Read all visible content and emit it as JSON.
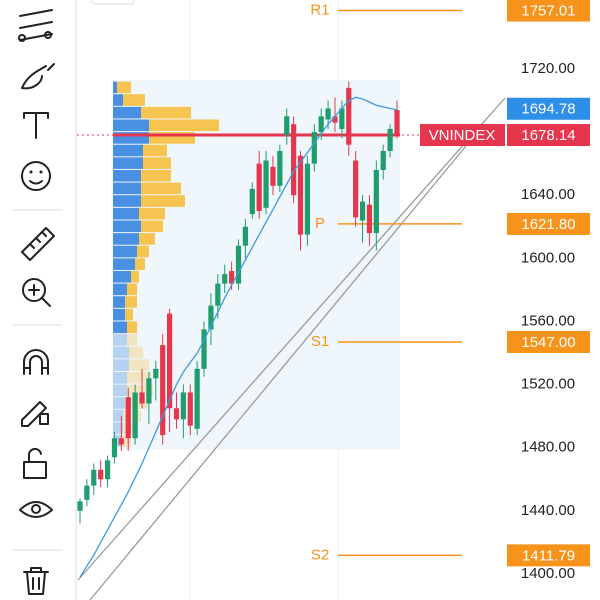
{
  "chart_data": {
    "type": "candlestick",
    "symbol": "VNINDEX",
    "ylim": [
      1383.5,
      1763.7
    ],
    "yticks": [
      {
        "value": 1720,
        "label": "1720.00"
      },
      {
        "value": 1640,
        "label": "1640.00"
      },
      {
        "value": 1600,
        "label": "1600.00"
      },
      {
        "value": 1560,
        "label": "1560.00"
      },
      {
        "value": 1520,
        "label": "1520.00"
      },
      {
        "value": 1480,
        "label": "1480.00"
      },
      {
        "value": 1440,
        "label": "1440.00"
      },
      {
        "value": 1400,
        "label": "1400.00"
      }
    ],
    "up_color": "#1f9d6c",
    "down_color": "#e6364d",
    "open": [
      1440,
      1447,
      1456,
      1466,
      1460,
      1474,
      1486,
      1512,
      1486,
      1515,
      1508,
      1524,
      1545,
      1565,
      1505,
      1498,
      1515,
      1492,
      1530,
      1555,
      1570,
      1584,
      1592,
      1584,
      1608,
      1628,
      1660,
      1632,
      1658,
      1646,
      1678,
      1685,
      1665,
      1615,
      1660,
      1680,
      1688,
      1690,
      1682,
      1708,
      1662,
      1624,
      1634,
      1616,
      1656,
      1668,
      1694
    ],
    "high": [
      1448,
      1460,
      1470,
      1472,
      1475,
      1490,
      1500,
      1518,
      1520,
      1530,
      1528,
      1535,
      1552,
      1568,
      1515,
      1520,
      1520,
      1535,
      1560,
      1578,
      1590,
      1596,
      1598,
      1612,
      1625,
      1648,
      1668,
      1668,
      1665,
      1672,
      1695,
      1690,
      1668,
      1665,
      1685,
      1695,
      1700,
      1702,
      1700,
      1712,
      1668,
      1640,
      1640,
      1662,
      1672,
      1685,
      1700
    ],
    "low": [
      1432,
      1443,
      1450,
      1455,
      1455,
      1470,
      1478,
      1478,
      1482,
      1505,
      1495,
      1510,
      1482,
      1490,
      1492,
      1486,
      1488,
      1488,
      1525,
      1545,
      1562,
      1578,
      1580,
      1580,
      1600,
      1625,
      1625,
      1628,
      1640,
      1642,
      1672,
      1635,
      1605,
      1608,
      1655,
      1675,
      1682,
      1680,
      1676,
      1665,
      1620,
      1610,
      1608,
      1605,
      1650,
      1664,
      1676
    ],
    "close": [
      1446,
      1456,
      1466,
      1460,
      1472,
      1486,
      1482,
      1486,
      1515,
      1508,
      1524,
      1530,
      1488,
      1505,
      1498,
      1515,
      1494,
      1530,
      1555,
      1570,
      1584,
      1590,
      1584,
      1608,
      1620,
      1644,
      1630,
      1662,
      1646,
      1668,
      1690,
      1640,
      1615,
      1660,
      1680,
      1690,
      1695,
      1686,
      1695,
      1672,
      1626,
      1636,
      1616,
      1656,
      1668,
      1682,
      1678
    ],
    "ma": {
      "color": "#3d9be0",
      "values": [
        1398,
        1405,
        1412,
        1420,
        1428,
        1436,
        1444,
        1452,
        1461,
        1470,
        1480,
        1490,
        1500,
        1510,
        1520,
        1528,
        1534,
        1540,
        1548,
        1557,
        1566,
        1575,
        1583,
        1591,
        1599,
        1607,
        1615,
        1623,
        1631,
        1639,
        1647,
        1655,
        1661,
        1667,
        1673,
        1679,
        1685,
        1690,
        1695,
        1700,
        1702,
        1701,
        1699,
        1697,
        1696,
        1695,
        1694
      ]
    },
    "volume_profile": {
      "bins": [
        1480,
        1488,
        1496,
        1504,
        1512,
        1520,
        1528,
        1536,
        1544,
        1552,
        1560,
        1568,
        1576,
        1584,
        1592,
        1600,
        1608,
        1616,
        1624,
        1632,
        1640,
        1648,
        1656,
        1664,
        1672,
        1680,
        1688,
        1696,
        1704,
        1712
      ],
      "buy": [
        8,
        10,
        10,
        12,
        14,
        14,
        16,
        16,
        14,
        14,
        12,
        12,
        14,
        18,
        22,
        24,
        26,
        28,
        26,
        28,
        28,
        28,
        30,
        30,
        36,
        36,
        28,
        10,
        4
      ],
      "sell": [
        10,
        14,
        18,
        22,
        26,
        24,
        20,
        14,
        10,
        10,
        8,
        12,
        10,
        8,
        10,
        12,
        16,
        22,
        26,
        44,
        40,
        30,
        28,
        24,
        46,
        70,
        50,
        22,
        14
      ],
      "buy_color": "#4a90e2",
      "sell_color": "#f5c451"
    },
    "levels": [
      {
        "name": "R1",
        "value": 1757.01,
        "label": "1757.01"
      },
      {
        "name": "P",
        "value": 1621.8,
        "label": "1621.80"
      },
      {
        "name": "S1",
        "value": 1547,
        "label": "1547.00"
      },
      {
        "name": "S2",
        "value": 1411.79,
        "label": "1411.79"
      }
    ],
    "level_color": "#f7931a",
    "last_price": {
      "value": 1694.78,
      "label": "1694.78",
      "color": "#2e8fe8"
    },
    "index_price": {
      "value": 1678.14,
      "label": "1678.14",
      "color": "#e6364d"
    }
  }
}
